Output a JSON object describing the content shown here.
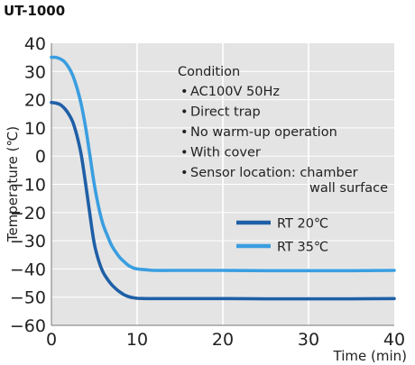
{
  "chart_data": {
    "type": "line",
    "title": "UT-1000",
    "xlabel": "Time (min)",
    "ylabel": "Temperature (℃)",
    "xlim": [
      0,
      40
    ],
    "ylim": [
      -60,
      40
    ],
    "x_ticks": [
      0,
      10,
      20,
      30,
      40
    ],
    "y_ticks": [
      40,
      30,
      20,
      10,
      0,
      -10,
      -20,
      -30,
      -40,
      -50,
      -60
    ],
    "grid": true,
    "legend_position": "lower-right",
    "annotation": {
      "heading": "Condition",
      "items": [
        "AC100V 50Hz",
        "Direct trap",
        "No warm-up operation",
        "With cover",
        "Sensor location: chamber"
      ],
      "continuation": "wall surface"
    },
    "series": [
      {
        "name": "RT 20℃",
        "color": "#1f5fa6",
        "x": [
          0,
          0.5,
          1,
          1.5,
          2,
          2.5,
          3,
          3.5,
          4,
          4.5,
          5,
          5.5,
          6,
          6.5,
          7,
          7.5,
          8,
          8.5,
          9,
          9.5,
          10,
          11,
          12,
          14,
          16,
          20,
          25,
          30,
          35,
          40
        ],
        "y": [
          19,
          18.8,
          18.3,
          17,
          15,
          12,
          7,
          0,
          -10,
          -21,
          -31,
          -37,
          -41,
          -43.5,
          -45.5,
          -47,
          -48.2,
          -49.2,
          -49.8,
          -50.2,
          -50.4,
          -50.5,
          -50.5,
          -50.5,
          -50.5,
          -50.5,
          -50.6,
          -50.6,
          -50.6,
          -50.5
        ]
      },
      {
        "name": "RT 35℃",
        "color": "#3a9ee0",
        "x": [
          0,
          0.5,
          1,
          1.5,
          2,
          2.5,
          3,
          3.5,
          4,
          4.5,
          5,
          5.5,
          6,
          6.5,
          7,
          7.5,
          8,
          8.5,
          9,
          9.5,
          10,
          11,
          12,
          14,
          16,
          20,
          25,
          30,
          35,
          40
        ],
        "y": [
          35,
          35,
          34.5,
          33.5,
          31.5,
          28.5,
          24,
          18,
          10,
          0,
          -10,
          -18,
          -24,
          -28,
          -31.5,
          -34,
          -36,
          -37.5,
          -38.8,
          -39.6,
          -40,
          -40.3,
          -40.5,
          -40.5,
          -40.5,
          -40.5,
          -40.6,
          -40.6,
          -40.6,
          -40.5
        ]
      }
    ]
  }
}
